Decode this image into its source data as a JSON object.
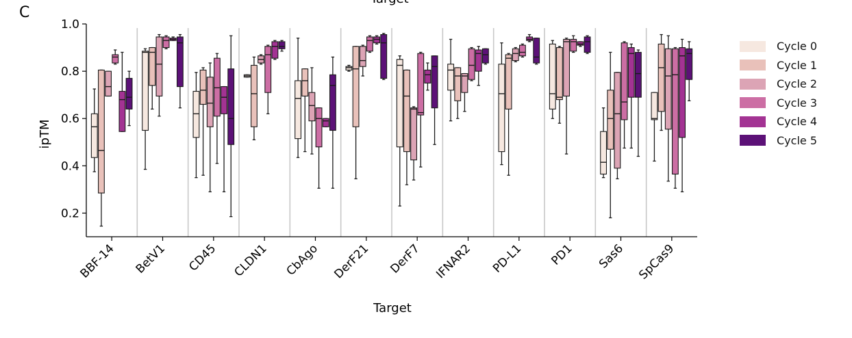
{
  "panel_label": "C",
  "top_title": "Target",
  "chart_data": {
    "type": "boxplot",
    "title": "",
    "xlabel": "Target",
    "ylabel": "ipTM",
    "ylim": [
      0.1,
      1.0
    ],
    "yticks": [
      0.2,
      0.4,
      0.6,
      0.8,
      1.0
    ],
    "ytick_labels": [
      "0.2",
      "0.4",
      "0.6",
      "0.8",
      "1.0"
    ],
    "categories": [
      "BBF-14",
      "BetV1",
      "CD45",
      "CLDN1",
      "CbAgo",
      "DerF21",
      "DerF7",
      "IFNAR2",
      "PD-L1",
      "PD1",
      "Sas6",
      "SpCas9"
    ],
    "legend": {
      "title": "",
      "position": "right"
    },
    "series": [
      {
        "name": "Cycle 0",
        "color": "#f6e8e0",
        "boxes": [
          {
            "q1": 0.435,
            "median": 0.565,
            "q3": 0.62,
            "whislo": 0.375,
            "whishi": 0.725
          },
          {
            "q1": 0.55,
            "median": 0.88,
            "q3": 0.885,
            "whislo": 0.385,
            "whishi": 0.895
          },
          {
            "q1": 0.52,
            "median": 0.62,
            "q3": 0.715,
            "whislo": 0.35,
            "whishi": 0.795
          },
          {
            "q1": 0.775,
            "median": 0.78,
            "q3": 0.785,
            "whislo": 0.775,
            "whishi": 0.785
          },
          {
            "q1": 0.515,
            "median": 0.685,
            "q3": 0.76,
            "whislo": 0.435,
            "whishi": 0.94
          },
          {
            "q1": 0.805,
            "median": 0.815,
            "q3": 0.82,
            "whislo": 0.8,
            "whishi": 0.825
          },
          {
            "q1": 0.48,
            "median": 0.825,
            "q3": 0.85,
            "whislo": 0.23,
            "whishi": 0.865
          },
          {
            "q1": 0.72,
            "median": 0.805,
            "q3": 0.83,
            "whislo": 0.59,
            "whishi": 0.935
          },
          {
            "q1": 0.46,
            "median": 0.705,
            "q3": 0.83,
            "whislo": 0.405,
            "whishi": 0.92
          },
          {
            "q1": 0.64,
            "median": 0.705,
            "q3": 0.915,
            "whislo": 0.6,
            "whishi": 0.93
          },
          {
            "q1": 0.365,
            "median": 0.415,
            "q3": 0.545,
            "whislo": 0.35,
            "whishi": 0.645
          },
          {
            "q1": 0.595,
            "median": 0.6,
            "q3": 0.71,
            "whislo": 0.42,
            "whishi": 0.71
          }
        ]
      },
      {
        "name": "Cycle 1",
        "color": "#e9c1ba",
        "boxes": [
          {
            "q1": 0.285,
            "median": 0.465,
            "q3": 0.805,
            "whislo": 0.145,
            "whishi": 0.805
          },
          {
            "q1": 0.74,
            "median": 0.88,
            "q3": 0.9,
            "whislo": 0.64,
            "whishi": 0.9
          },
          {
            "q1": 0.66,
            "median": 0.72,
            "q3": 0.805,
            "whislo": 0.36,
            "whishi": 0.815
          },
          {
            "q1": 0.565,
            "median": 0.705,
            "q3": 0.825,
            "whislo": 0.51,
            "whishi": 0.86
          },
          {
            "q1": 0.695,
            "median": 0.76,
            "q3": 0.81,
            "whislo": 0.46,
            "whishi": 0.81
          },
          {
            "q1": 0.565,
            "median": 0.81,
            "q3": 0.905,
            "whislo": 0.345,
            "whishi": 0.905
          },
          {
            "q1": 0.46,
            "median": 0.695,
            "q3": 0.805,
            "whislo": 0.32,
            "whishi": 0.805
          },
          {
            "q1": 0.675,
            "median": 0.78,
            "q3": 0.815,
            "whislo": 0.6,
            "whishi": 0.815
          },
          {
            "q1": 0.64,
            "median": 0.855,
            "q3": 0.87,
            "whislo": 0.36,
            "whishi": 0.875
          },
          {
            "q1": 0.68,
            "median": 0.69,
            "q3": 0.9,
            "whislo": 0.58,
            "whishi": 0.905
          },
          {
            "q1": 0.47,
            "median": 0.6,
            "q3": 0.72,
            "whislo": 0.18,
            "whishi": 0.88
          },
          {
            "q1": 0.63,
            "median": 0.815,
            "q3": 0.915,
            "whislo": 0.55,
            "whishi": 0.955
          }
        ]
      },
      {
        "name": "Cycle 2",
        "color": "#dca4b5",
        "boxes": [
          {
            "q1": 0.695,
            "median": 0.735,
            "q3": 0.8,
            "whislo": 0.695,
            "whishi": 0.8
          },
          {
            "q1": 0.695,
            "median": 0.83,
            "q3": 0.945,
            "whislo": 0.61,
            "whishi": 0.955
          },
          {
            "q1": 0.565,
            "median": 0.665,
            "q3": 0.775,
            "whislo": 0.29,
            "whishi": 0.835
          },
          {
            "q1": 0.835,
            "median": 0.85,
            "q3": 0.865,
            "whislo": 0.83,
            "whishi": 0.87
          },
          {
            "q1": 0.59,
            "median": 0.655,
            "q3": 0.71,
            "whislo": 0.45,
            "whishi": 0.815
          },
          {
            "q1": 0.82,
            "median": 0.845,
            "q3": 0.905,
            "whislo": 0.78,
            "whishi": 0.91
          },
          {
            "q1": 0.425,
            "median": 0.64,
            "q3": 0.645,
            "whislo": 0.34,
            "whishi": 0.65
          },
          {
            "q1": 0.71,
            "median": 0.78,
            "q3": 0.79,
            "whislo": 0.63,
            "whishi": 0.79
          },
          {
            "q1": 0.845,
            "median": 0.875,
            "q3": 0.895,
            "whislo": 0.84,
            "whishi": 0.9
          },
          {
            "q1": 0.695,
            "median": 0.925,
            "q3": 0.935,
            "whislo": 0.45,
            "whishi": 0.94
          },
          {
            "q1": 0.39,
            "median": 0.62,
            "q3": 0.795,
            "whislo": 0.345,
            "whishi": 0.795
          },
          {
            "q1": 0.555,
            "median": 0.78,
            "q3": 0.895,
            "whislo": 0.335,
            "whishi": 0.95
          }
        ]
      }
    ]
  }
}
